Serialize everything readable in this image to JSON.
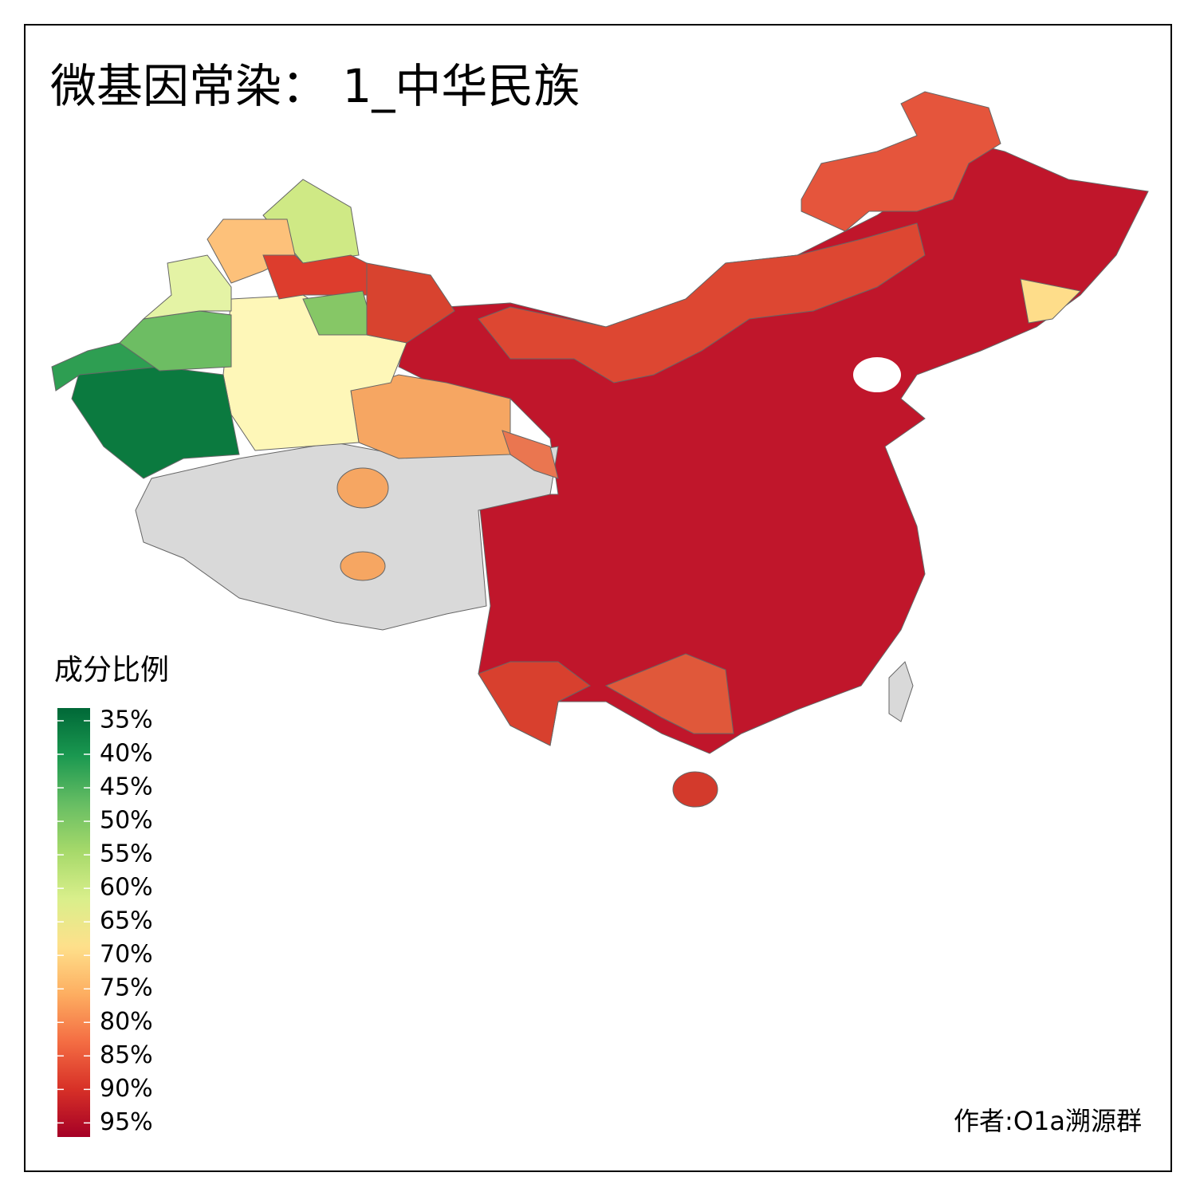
{
  "title": "微基因常染： 1_中华民族",
  "legend": {
    "title": "成分比例",
    "range": [
      33.1,
      97.1
    ],
    "colors": [
      "#006837",
      "#1a9850",
      "#66bd63",
      "#a6d96a",
      "#d9ef8b",
      "#fee08b",
      "#fdae61",
      "#f46d43",
      "#d73027",
      "#a50026"
    ],
    "ticks": [
      {
        "value": 35,
        "label": "35%"
      },
      {
        "value": 40,
        "label": "40%"
      },
      {
        "value": 45,
        "label": "45%"
      },
      {
        "value": 50,
        "label": "50%"
      },
      {
        "value": 55,
        "label": "55%"
      },
      {
        "value": 60,
        "label": "60%"
      },
      {
        "value": 65,
        "label": "65%"
      },
      {
        "value": 70,
        "label": "70%"
      },
      {
        "value": 75,
        "label": "75%"
      },
      {
        "value": 80,
        "label": "80%"
      },
      {
        "value": 85,
        "label": "85%"
      },
      {
        "value": 90,
        "label": "90%"
      },
      {
        "value": 95,
        "label": "95%"
      }
    ]
  },
  "credit": "作者:O1a溯源群"
}
